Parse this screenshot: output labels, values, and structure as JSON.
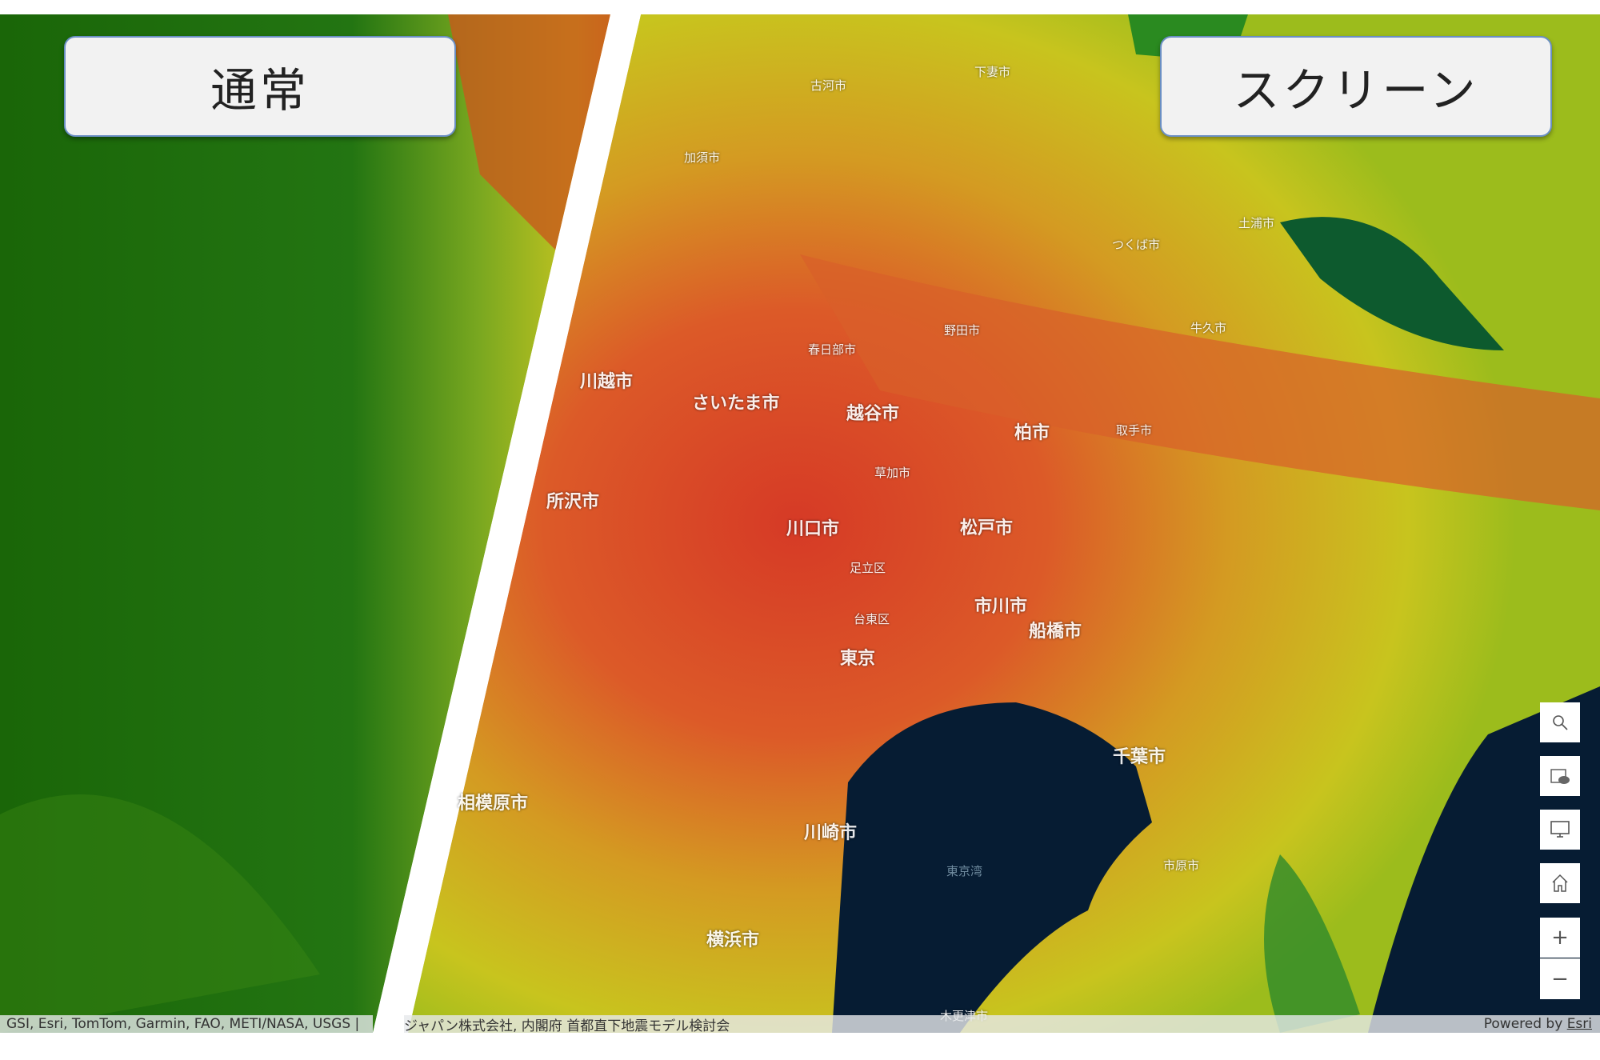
{
  "panels": {
    "left_title": "通常",
    "right_title": "スクリーン"
  },
  "colors": {
    "normal_green": "#1f6b0a",
    "screen_red": "#d9432a",
    "screen_orange": "#e0702a",
    "screen_yellow": "#c8c61e",
    "water": "#061c33"
  },
  "cities_major": [
    "さいたま市",
    "川越市",
    "越谷市",
    "柏市",
    "所沢市",
    "川口市",
    "松戸市",
    "市川市",
    "船橋市",
    "東京",
    "千葉市",
    "相模原市",
    "川崎市",
    "横浜市"
  ],
  "cities_minor": [
    "古河市",
    "下妻市",
    "つくば市",
    "土浦市",
    "牛久市",
    "取手市",
    "足立区",
    "台東区",
    "市原市",
    "木更津市",
    "加須市",
    "春日部市",
    "野田市",
    "草加市"
  ],
  "water_label": "東京湾",
  "controls": [
    {
      "name": "search",
      "icon": "search-icon"
    },
    {
      "name": "basemap",
      "icon": "basemap-gallery-icon"
    },
    {
      "name": "fullscreen",
      "icon": "monitor-icon"
    },
    {
      "name": "home",
      "icon": "home-icon"
    },
    {
      "name": "zoom-in",
      "icon": "plus-icon",
      "label": "+"
    },
    {
      "name": "zoom-out",
      "icon": "minus-icon",
      "label": "−"
    }
  ],
  "attribution": {
    "left": "GSI, Esri, TomTom, Garmin, FAO, METI/NASA, USGS |",
    "right": "ジャパン株式会社, 内閣府 首都直下地震モデル検討会",
    "powered_prefix": "Powered by ",
    "powered_link": "Esri"
  }
}
